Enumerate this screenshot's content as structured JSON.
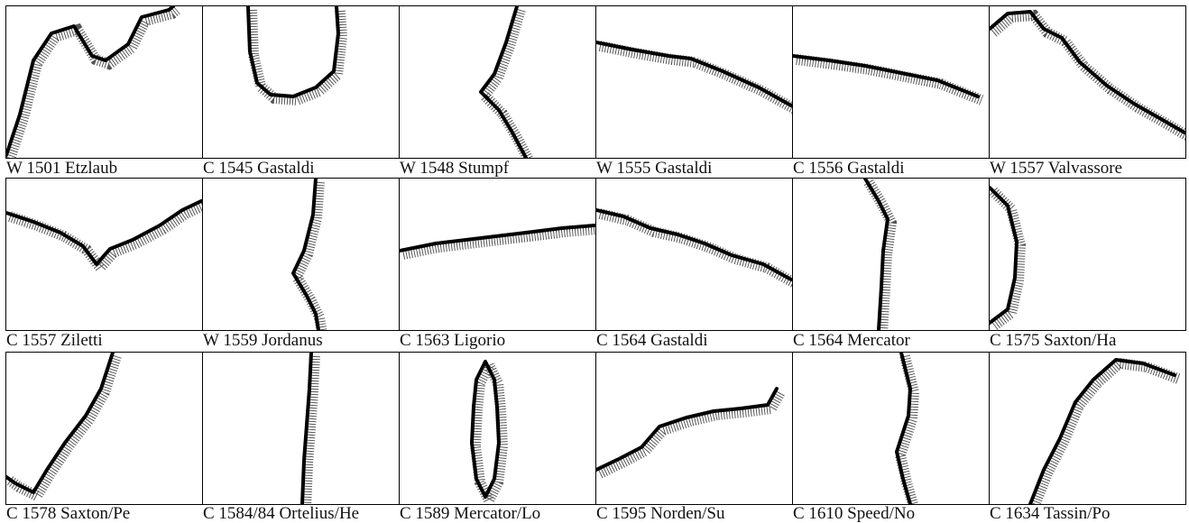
{
  "panels": [
    {
      "caption": "W 1501 Etzlaub"
    },
    {
      "caption": "C 1545 Gastaldi"
    },
    {
      "caption": "W 1548 Stumpf"
    },
    {
      "caption": "W 1555 Gastaldi"
    },
    {
      "caption": "C 1556 Gastaldi"
    },
    {
      "caption": "W 1557 Valvassore"
    },
    {
      "caption": "C 1557 Ziletti"
    },
    {
      "caption": "W 1559 Jordanus"
    },
    {
      "caption": "C 1563 Ligorio"
    },
    {
      "caption": "C 1564 Gastaldi"
    },
    {
      "caption": "C 1564 Mercator"
    },
    {
      "caption": "C 1575 Saxton/Ha"
    },
    {
      "caption": "C 1578 Saxton/Pe"
    },
    {
      "caption": "C 1584/84 Ortelius/He"
    },
    {
      "caption": "C 1589 Mercator/Lo"
    },
    {
      "caption": "C 1595 Norden/Su"
    },
    {
      "caption": "C 1610 Speed/No"
    },
    {
      "caption": "C 1634 Tassin/Po"
    }
  ]
}
